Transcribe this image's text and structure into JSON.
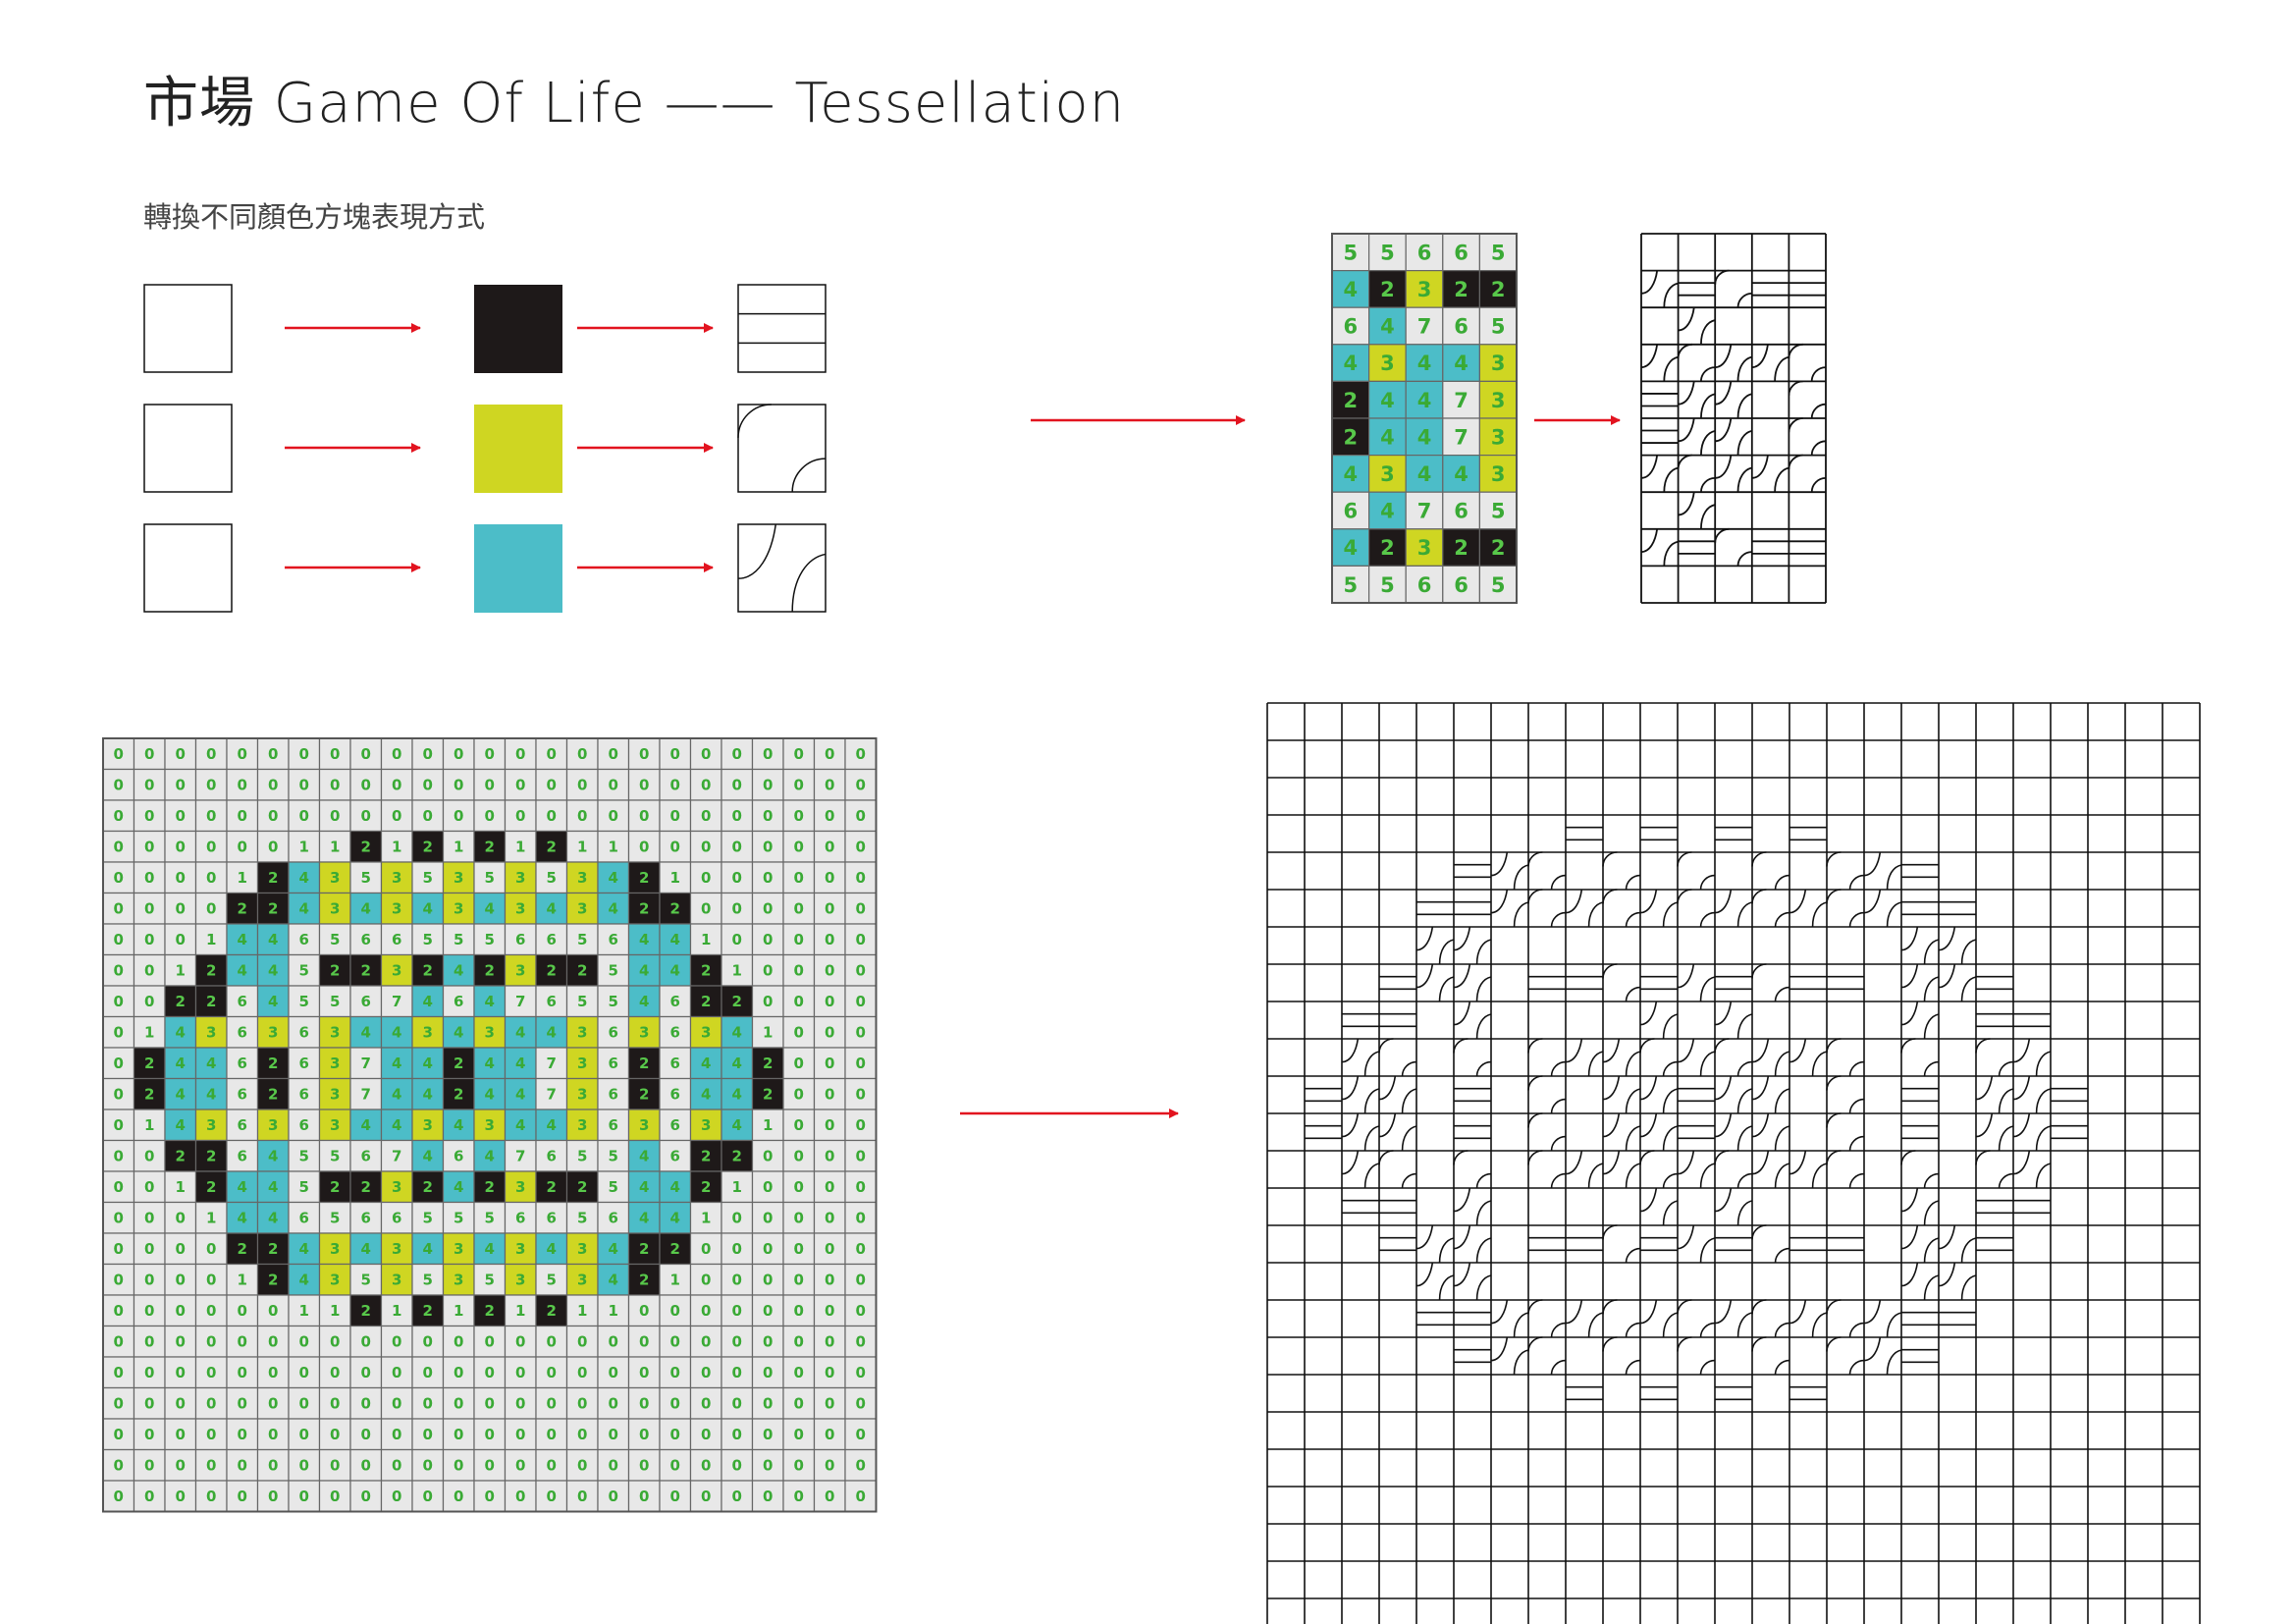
{
  "header": {
    "title": "市場 Game Of Life —— Tessellation",
    "subtitle": "轉換不同顏色方塊表現方式"
  },
  "colors": {
    "black": "#1e1919",
    "yellow": "#cfd622",
    "cyan": "#4cbdc8",
    "cell_bg": "#e8e8e8",
    "cell_border": "#666666",
    "number": "#3aaa35",
    "arrow": "#e2131f"
  },
  "legend": {
    "rows": [
      {
        "color": "black",
        "tile": "lines-tile-icon"
      },
      {
        "color": "yellow",
        "tile": "corner-arcs-tile-icon"
      },
      {
        "color": "cyan",
        "tile": "s-curve-tile-icon"
      }
    ]
  },
  "small_grid": {
    "values": [
      [
        5,
        5,
        6,
        6,
        5
      ],
      [
        4,
        2,
        3,
        2,
        2
      ],
      [
        6,
        4,
        7,
        6,
        5
      ],
      [
        4,
        3,
        4,
        4,
        3
      ],
      [
        2,
        4,
        4,
        7,
        3
      ],
      [
        2,
        4,
        4,
        7,
        3
      ],
      [
        4,
        3,
        4,
        4,
        3
      ],
      [
        6,
        4,
        7,
        6,
        5
      ],
      [
        4,
        2,
        3,
        2,
        2
      ],
      [
        5,
        5,
        6,
        6,
        5
      ]
    ]
  },
  "large_grid": {
    "values": [
      [
        0,
        0,
        0,
        0,
        0,
        0,
        0,
        0,
        0,
        0,
        0,
        0,
        0,
        0,
        0,
        0,
        0,
        0,
        0,
        0,
        0,
        0,
        0,
        0,
        0
      ],
      [
        0,
        0,
        0,
        0,
        0,
        0,
        0,
        0,
        0,
        0,
        0,
        0,
        0,
        0,
        0,
        0,
        0,
        0,
        0,
        0,
        0,
        0,
        0,
        0,
        0
      ],
      [
        0,
        0,
        0,
        0,
        0,
        0,
        0,
        0,
        0,
        0,
        0,
        0,
        0,
        0,
        0,
        0,
        0,
        0,
        0,
        0,
        0,
        0,
        0,
        0,
        0
      ],
      [
        0,
        0,
        0,
        0,
        0,
        0,
        1,
        1,
        2,
        1,
        2,
        1,
        2,
        1,
        2,
        1,
        1,
        0,
        0,
        0,
        0,
        0,
        0,
        0,
        0
      ],
      [
        0,
        0,
        0,
        0,
        1,
        2,
        4,
        3,
        5,
        3,
        5,
        3,
        5,
        3,
        5,
        3,
        4,
        2,
        1,
        0,
        0,
        0,
        0,
        0,
        0
      ],
      [
        0,
        0,
        0,
        0,
        2,
        2,
        4,
        3,
        4,
        3,
        4,
        3,
        4,
        3,
        4,
        3,
        4,
        2,
        2,
        0,
        0,
        0,
        0,
        0,
        0
      ],
      [
        0,
        0,
        0,
        1,
        4,
        4,
        6,
        5,
        6,
        6,
        5,
        5,
        5,
        6,
        6,
        5,
        6,
        4,
        4,
        1,
        0,
        0,
        0,
        0,
        0
      ],
      [
        0,
        0,
        1,
        2,
        4,
        4,
        5,
        2,
        2,
        3,
        2,
        4,
        2,
        3,
        2,
        2,
        5,
        4,
        4,
        2,
        1,
        0,
        0,
        0,
        0
      ],
      [
        0,
        0,
        2,
        2,
        6,
        4,
        5,
        5,
        6,
        7,
        4,
        6,
        4,
        7,
        6,
        5,
        5,
        4,
        6,
        2,
        2,
        0,
        0,
        0,
        0
      ],
      [
        0,
        1,
        4,
        3,
        6,
        3,
        6,
        3,
        4,
        4,
        3,
        4,
        3,
        4,
        4,
        3,
        6,
        3,
        6,
        3,
        4,
        1,
        0,
        0,
        0
      ],
      [
        0,
        2,
        4,
        4,
        6,
        2,
        6,
        3,
        7,
        4,
        4,
        2,
        4,
        4,
        7,
        3,
        6,
        2,
        6,
        4,
        4,
        2,
        0,
        0,
        0
      ],
      [
        0,
        2,
        4,
        4,
        6,
        2,
        6,
        3,
        7,
        4,
        4,
        2,
        4,
        4,
        7,
        3,
        6,
        2,
        6,
        4,
        4,
        2,
        0,
        0,
        0
      ],
      [
        0,
        1,
        4,
        3,
        6,
        3,
        6,
        3,
        4,
        4,
        3,
        4,
        3,
        4,
        4,
        3,
        6,
        3,
        6,
        3,
        4,
        1,
        0,
        0,
        0
      ],
      [
        0,
        0,
        2,
        2,
        6,
        4,
        5,
        5,
        6,
        7,
        4,
        6,
        4,
        7,
        6,
        5,
        5,
        4,
        6,
        2,
        2,
        0,
        0,
        0,
        0
      ],
      [
        0,
        0,
        1,
        2,
        4,
        4,
        5,
        2,
        2,
        3,
        2,
        4,
        2,
        3,
        2,
        2,
        5,
        4,
        4,
        2,
        1,
        0,
        0,
        0,
        0
      ],
      [
        0,
        0,
        0,
        1,
        4,
        4,
        6,
        5,
        6,
        6,
        5,
        5,
        5,
        6,
        6,
        5,
        6,
        4,
        4,
        1,
        0,
        0,
        0,
        0,
        0
      ],
      [
        0,
        0,
        0,
        0,
        2,
        2,
        4,
        3,
        4,
        3,
        4,
        3,
        4,
        3,
        4,
        3,
        4,
        2,
        2,
        0,
        0,
        0,
        0,
        0,
        0
      ],
      [
        0,
        0,
        0,
        0,
        1,
        2,
        4,
        3,
        5,
        3,
        5,
        3,
        5,
        3,
        5,
        3,
        4,
        2,
        1,
        0,
        0,
        0,
        0,
        0,
        0
      ],
      [
        0,
        0,
        0,
        0,
        0,
        0,
        1,
        1,
        2,
        1,
        2,
        1,
        2,
        1,
        2,
        1,
        1,
        0,
        0,
        0,
        0,
        0,
        0,
        0,
        0
      ],
      [
        0,
        0,
        0,
        0,
        0,
        0,
        0,
        0,
        0,
        0,
        0,
        0,
        0,
        0,
        0,
        0,
        0,
        0,
        0,
        0,
        0,
        0,
        0,
        0,
        0
      ],
      [
        0,
        0,
        0,
        0,
        0,
        0,
        0,
        0,
        0,
        0,
        0,
        0,
        0,
        0,
        0,
        0,
        0,
        0,
        0,
        0,
        0,
        0,
        0,
        0,
        0
      ],
      [
        0,
        0,
        0,
        0,
        0,
        0,
        0,
        0,
        0,
        0,
        0,
        0,
        0,
        0,
        0,
        0,
        0,
        0,
        0,
        0,
        0,
        0,
        0,
        0,
        0
      ],
      [
        0,
        0,
        0,
        0,
        0,
        0,
        0,
        0,
        0,
        0,
        0,
        0,
        0,
        0,
        0,
        0,
        0,
        0,
        0,
        0,
        0,
        0,
        0,
        0,
        0
      ],
      [
        0,
        0,
        0,
        0,
        0,
        0,
        0,
        0,
        0,
        0,
        0,
        0,
        0,
        0,
        0,
        0,
        0,
        0,
        0,
        0,
        0,
        0,
        0,
        0,
        0
      ],
      [
        0,
        0,
        0,
        0,
        0,
        0,
        0,
        0,
        0,
        0,
        0,
        0,
        0,
        0,
        0,
        0,
        0,
        0,
        0,
        0,
        0,
        0,
        0,
        0,
        0
      ]
    ]
  },
  "tile_rule": {
    "2": "black",
    "3": "yellow",
    "4": "cyan"
  }
}
